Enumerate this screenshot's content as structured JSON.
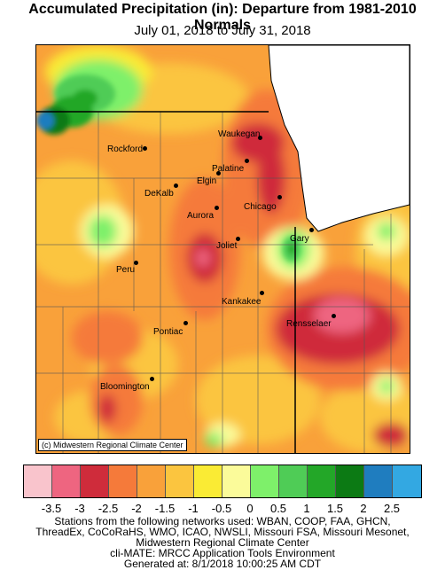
{
  "header": {
    "title": "Accumulated Precipitation (in): Departure from 1981-2010 Normals",
    "subtitle": "July 01, 2018 to July 31, 2018"
  },
  "map": {
    "credit": "(c) Midwestern Regional Climate Center",
    "cities": [
      {
        "name": "Rockford"
      },
      {
        "name": "Waukegan"
      },
      {
        "name": "Palatine"
      },
      {
        "name": "Elgin"
      },
      {
        "name": "DeKalb"
      },
      {
        "name": "Aurora"
      },
      {
        "name": "Chicago"
      },
      {
        "name": "Gary"
      },
      {
        "name": "Joliet"
      },
      {
        "name": "Peru"
      },
      {
        "name": "Kankakee"
      },
      {
        "name": "Rensselaer"
      },
      {
        "name": "Pontiac"
      },
      {
        "name": "Bloomington"
      }
    ]
  },
  "legend": {
    "colors": [
      "#f9c4cc",
      "#ee6580",
      "#cf2c3b",
      "#f57a3a",
      "#f9a13a",
      "#fbc53f",
      "#faeb34",
      "#fbfb9a",
      "#7ef06a",
      "#4fcc56",
      "#23a728",
      "#0c7a14",
      "#1f7dbf",
      "#33a8e2"
    ],
    "ticks": [
      "-3.5",
      "-3",
      "-2.5",
      "-2",
      "-1.5",
      "-1",
      "-0.5",
      "0",
      "0.5",
      "1",
      "1.5",
      "2",
      "2.5"
    ]
  },
  "footer": {
    "lines": [
      "Stations from the following networks used: WBAN, COOP, FAA, GHCN,",
      "ThreadEx, CoCoRaHS, WMO, ICAO, NWSLI, Missouri FSA, Missouri Mesonet,",
      "Midwestern Regional Climate Center",
      "cli-MATE: MRCC Application Tools Environment",
      "Generated at: 8/1/2018 10:00:25 AM CDT"
    ]
  }
}
